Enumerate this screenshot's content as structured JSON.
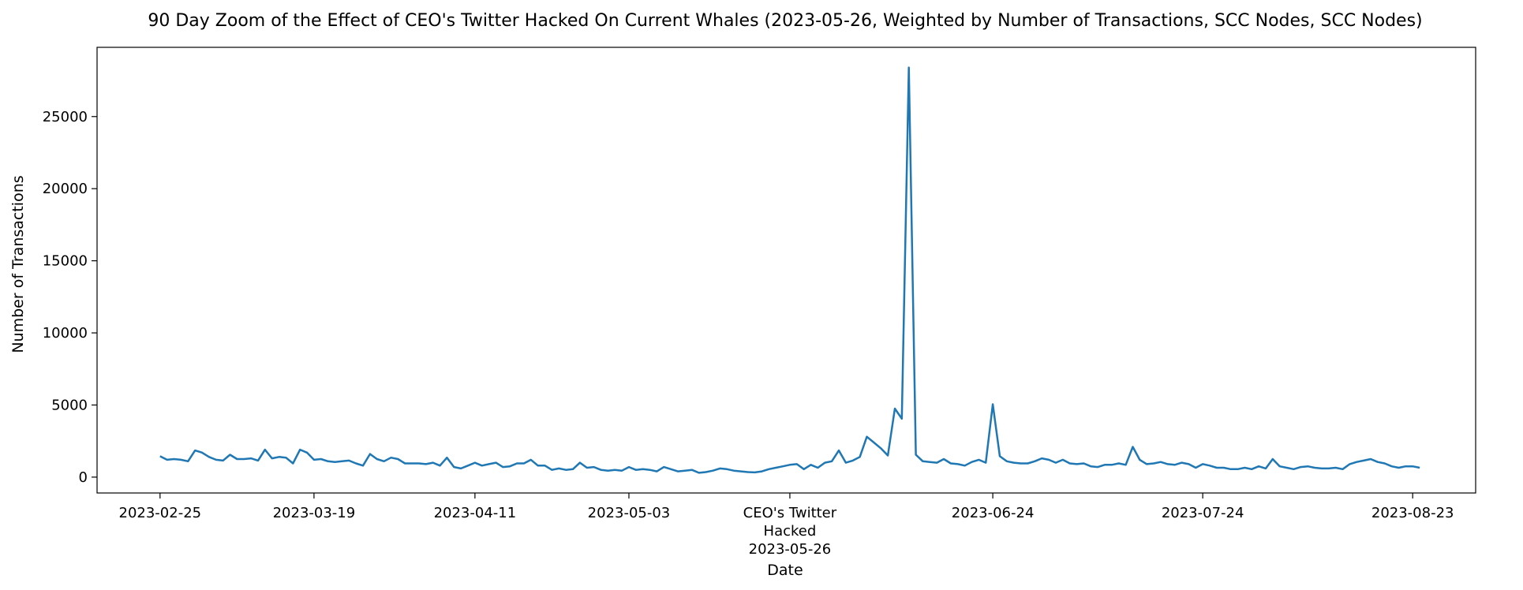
{
  "chart_data": {
    "type": "line",
    "title": "90 Day Zoom of the Effect of CEO's Twitter Hacked On Current Whales (2023-05-26, Weighted by Number of Transactions, SCC Nodes, SCC Nodes)",
    "xlabel": "Date",
    "ylabel": "Number of Transactions",
    "xlim": [
      "2023-02-16",
      "2023-09-01"
    ],
    "ylim": [
      -1100,
      29800
    ],
    "grid": false,
    "series_color": "#1f77b4",
    "x_ticks": [
      {
        "date": "2023-02-25",
        "label": "2023-02-25"
      },
      {
        "date": "2023-03-19",
        "label": "2023-03-19"
      },
      {
        "date": "2023-04-11",
        "label": "2023-04-11"
      },
      {
        "date": "2023-05-03",
        "label": "2023-05-03"
      },
      {
        "date": "2023-05-26",
        "label": "CEO's Twitter\nHacked\n2023-05-26"
      },
      {
        "date": "2023-06-24",
        "label": "2023-06-24"
      },
      {
        "date": "2023-07-24",
        "label": "2023-07-24"
      },
      {
        "date": "2023-08-23",
        "label": "2023-08-23"
      }
    ],
    "y_ticks": [
      0,
      5000,
      10000,
      15000,
      20000,
      25000
    ],
    "series": [
      {
        "start_date": "2023-02-25",
        "values": [
          1450,
          1200,
          1250,
          1200,
          1100,
          1850,
          1700,
          1400,
          1200,
          1150,
          1550,
          1250,
          1250,
          1300,
          1150,
          1900,
          1300,
          1400,
          1350,
          950,
          1900,
          1700,
          1200,
          1250,
          1100,
          1050,
          1100,
          1150,
          950,
          800,
          1600,
          1250,
          1100,
          1350,
          1250,
          950,
          950,
          950,
          900,
          1000,
          800,
          1350,
          700,
          600,
          800,
          1000,
          800,
          900,
          1000,
          700,
          750,
          950,
          950,
          1200,
          800,
          800,
          500,
          600,
          500,
          550,
          1000,
          650,
          700,
          500,
          450,
          500,
          450,
          700,
          500,
          550,
          500,
          400,
          700,
          550,
          400,
          450,
          500,
          300,
          350,
          450,
          600,
          550,
          450,
          400,
          350,
          330,
          400,
          550,
          650,
          750,
          850,
          900,
          550,
          850,
          650,
          1000,
          1100,
          1850,
          1000,
          1150,
          1400,
          2800,
          2400,
          2000,
          1500,
          4750,
          4050,
          28400,
          1550,
          1100,
          1050,
          1000,
          1250,
          950,
          900,
          800,
          1050,
          1200,
          1000,
          5050,
          1450,
          1100,
          1000,
          950,
          950,
          1100,
          1300,
          1200,
          1000,
          1200,
          950,
          900,
          950,
          750,
          700,
          850,
          850,
          950,
          850,
          2100,
          1200,
          900,
          950,
          1050,
          900,
          850,
          1000,
          900,
          650,
          900,
          800,
          650,
          650,
          550,
          550,
          650,
          550,
          750,
          600,
          1250,
          750,
          650,
          550,
          700,
          750,
          650,
          600,
          600,
          650,
          550,
          900,
          1050,
          1150,
          1250,
          1050,
          950,
          750,
          650,
          750,
          750,
          650
        ]
      }
    ]
  }
}
